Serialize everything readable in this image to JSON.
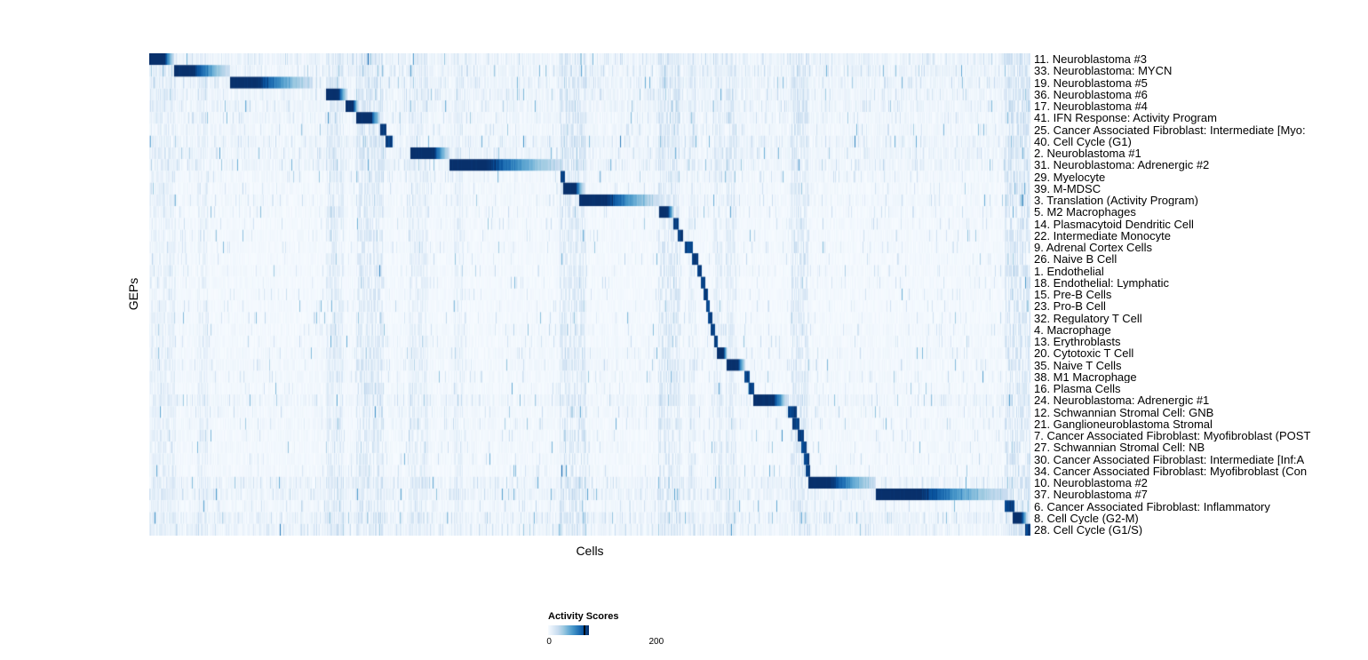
{
  "chart_data": {
    "type": "heatmap",
    "xlabel": "Cells",
    "ylabel": "GEPs",
    "colorbar": {
      "title": "Activity Scores",
      "min": 0,
      "max": 200
    },
    "colormap_stops": [
      "#f7fbff",
      "#deebf7",
      "#c6dbef",
      "#9ecae1",
      "#6baed6",
      "#4292c6",
      "#2171b5",
      "#08519c",
      "#08306b"
    ],
    "value_range": [
      0,
      255
    ],
    "rows": [
      {
        "label": "11. Neuroblastoma #3",
        "block_start": 0.0,
        "block_end": 0.028,
        "noise": 2.0
      },
      {
        "label": "33. Neuroblastoma: MYCN",
        "block_start": 0.028,
        "block_end": 0.091,
        "noise": 2.0
      },
      {
        "label": "19. Neuroblastoma #5",
        "block_start": 0.091,
        "block_end": 0.185,
        "noise": 2.0
      },
      {
        "label": "36. Neuroblastoma #6",
        "block_start": 0.2,
        "block_end": 0.224,
        "noise": 1.8
      },
      {
        "label": "17. Neuroblastoma #4",
        "block_start": 0.222,
        "block_end": 0.237,
        "noise": 1.8
      },
      {
        "label": "41. IFN Response: Activity Program",
        "block_start": 0.234,
        "block_end": 0.262,
        "noise": 1.6
      },
      {
        "label": "25. Cancer Associated Fibroblast: Intermediate [Myo:",
        "block_start": 0.262,
        "block_end": 0.269,
        "noise": 1.4
      },
      {
        "label": "40. Cell Cycle (G1)",
        "block_start": 0.268,
        "block_end": 0.276,
        "noise": 1.8
      },
      {
        "label": "2. Neuroblastoma #1",
        "block_start": 0.296,
        "block_end": 0.34,
        "noise": 1.8
      },
      {
        "label": "31. Neuroblastoma: Adrenergic #2",
        "block_start": 0.34,
        "block_end": 0.468,
        "noise": 1.8
      },
      {
        "label": "29. Myelocyte",
        "block_start": 0.466,
        "block_end": 0.471,
        "noise": 1.2
      },
      {
        "label": "39. M-MDSC",
        "block_start": 0.469,
        "block_end": 0.493,
        "noise": 1.0
      },
      {
        "label": "3. Translation (Activity Program)",
        "block_start": 0.487,
        "block_end": 0.578,
        "noise": 1.2
      },
      {
        "label": "5. M2 Macrophages",
        "block_start": 0.578,
        "block_end": 0.595,
        "noise": 1.0
      },
      {
        "label": "14. Plasmacytoid Dendritic Cell",
        "block_start": 0.594,
        "block_end": 0.6,
        "noise": 0.9
      },
      {
        "label": "22. Intermediate Monocyte",
        "block_start": 0.599,
        "block_end": 0.605,
        "noise": 0.9
      },
      {
        "label": "9. Adrenal Cortex Cells",
        "block_start": 0.607,
        "block_end": 0.616,
        "noise": 0.9
      },
      {
        "label": "26. Naive B Cell",
        "block_start": 0.615,
        "block_end": 0.622,
        "noise": 0.8
      },
      {
        "label": "1. Endothelial",
        "block_start": 0.621,
        "block_end": 0.627,
        "noise": 0.9
      },
      {
        "label": "18. Endothelial: Lymphatic",
        "block_start": 0.626,
        "block_end": 0.631,
        "noise": 0.8
      },
      {
        "label": "15. Pre-B Cells",
        "block_start": 0.629,
        "block_end": 0.634,
        "noise": 0.8
      },
      {
        "label": "23. Pro-B Cell",
        "block_start": 0.632,
        "block_end": 0.636,
        "noise": 0.8
      },
      {
        "label": "32. Regulatory T Cell",
        "block_start": 0.634,
        "block_end": 0.639,
        "noise": 0.8
      },
      {
        "label": "4. Macrophage",
        "block_start": 0.637,
        "block_end": 0.642,
        "noise": 1.0
      },
      {
        "label": "13. Erythroblasts",
        "block_start": 0.641,
        "block_end": 0.645,
        "noise": 0.9
      },
      {
        "label": "20. Cytotoxic T Cell",
        "block_start": 0.644,
        "block_end": 0.656,
        "noise": 1.1
      },
      {
        "label": "35. Naive T Cells",
        "block_start": 0.655,
        "block_end": 0.676,
        "noise": 1.1
      },
      {
        "label": "38. M1 Macrophage",
        "block_start": 0.675,
        "block_end": 0.681,
        "noise": 1.0
      },
      {
        "label": "16. Plasma Cells",
        "block_start": 0.68,
        "block_end": 0.686,
        "noise": 0.9
      },
      {
        "label": "24. Neuroblastoma: Adrenergic #1",
        "block_start": 0.685,
        "block_end": 0.724,
        "noise": 1.6
      },
      {
        "label": "12. Schwannian Stromal Cell: GNB",
        "block_start": 0.724,
        "block_end": 0.734,
        "noise": 1.1
      },
      {
        "label": "21. Ganglioneuroblastoma Stromal",
        "block_start": 0.729,
        "block_end": 0.737,
        "noise": 1.1
      },
      {
        "label": "7. Cancer Associated Fibroblast: Myofibroblast (POST",
        "block_start": 0.735,
        "block_end": 0.742,
        "noise": 1.0
      },
      {
        "label": "27. Schwannian Stromal Cell: NB",
        "block_start": 0.739,
        "block_end": 0.745,
        "noise": 1.0
      },
      {
        "label": "30. Cancer Associated Fibroblast: Intermediate [Inf:A",
        "block_start": 0.742,
        "block_end": 0.748,
        "noise": 1.0
      },
      {
        "label": "34. Cancer Associated Fibroblast: Myofibroblast (Con",
        "block_start": 0.744,
        "block_end": 0.75,
        "noise": 1.0
      },
      {
        "label": "10. Neuroblastoma #2",
        "block_start": 0.747,
        "block_end": 0.824,
        "noise": 1.8
      },
      {
        "label": "37. Neuroblastoma #7",
        "block_start": 0.824,
        "block_end": 0.972,
        "noise": 2.0
      },
      {
        "label": "6. Cancer Associated Fibroblast: Inflammatory",
        "block_start": 0.97,
        "block_end": 0.981,
        "noise": 1.2
      },
      {
        "label": "8. Cell Cycle (G2-M)",
        "block_start": 0.979,
        "block_end": 0.996,
        "noise": 2.2
      },
      {
        "label": "28. Cell Cycle (G1/S)",
        "block_start": 0.993,
        "block_end": 1.0,
        "noise": 1.8
      }
    ],
    "streaks": [
      {
        "x": 0.015,
        "w": 0.03,
        "amp": 25
      },
      {
        "x": 0.06,
        "w": 0.012,
        "amp": 25
      },
      {
        "x": 0.21,
        "w": 0.02,
        "amp": 35
      },
      {
        "x": 0.25,
        "w": 0.032,
        "amp": 45
      },
      {
        "x": 0.305,
        "w": 0.022,
        "amp": 30
      },
      {
        "x": 0.35,
        "w": 0.01,
        "amp": 25
      },
      {
        "x": 0.48,
        "w": 0.03,
        "amp": 45
      },
      {
        "x": 0.59,
        "w": 0.025,
        "amp": 45
      },
      {
        "x": 0.615,
        "w": 0.008,
        "amp": 30
      },
      {
        "x": 0.645,
        "w": 0.01,
        "amp": 30
      },
      {
        "x": 0.66,
        "w": 0.012,
        "amp": 35
      },
      {
        "x": 0.737,
        "w": 0.02,
        "amp": 45
      },
      {
        "x": 0.985,
        "w": 0.03,
        "amp": 55
      }
    ]
  }
}
